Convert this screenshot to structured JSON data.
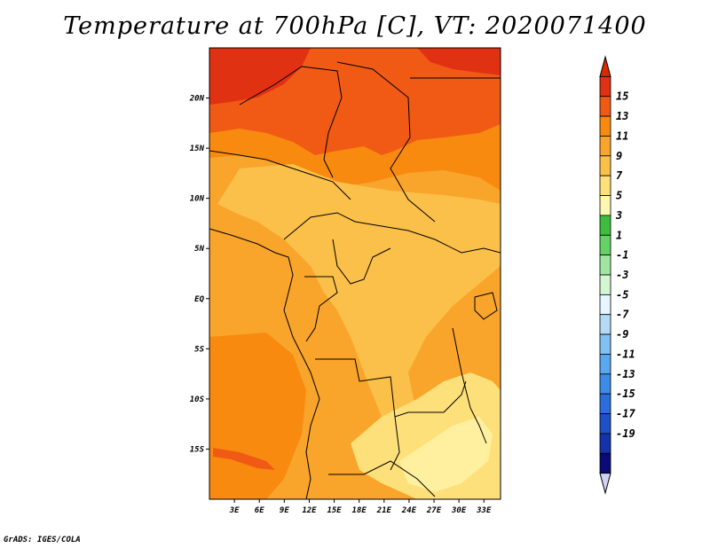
{
  "title": "Temperature at 700hPa [C], VT: 2020071400",
  "credit": "GrADS: IGES/COLA",
  "map": {
    "lon_range": [
      0,
      35
    ],
    "lat_range": [
      -20,
      25
    ],
    "lat_ticks": [
      {
        "value": 20,
        "label": "20N"
      },
      {
        "value": 15,
        "label": "15N"
      },
      {
        "value": 10,
        "label": "10N"
      },
      {
        "value": 5,
        "label": "5N"
      },
      {
        "value": 0,
        "label": "EQ"
      },
      {
        "value": -5,
        "label": "5S"
      },
      {
        "value": -10,
        "label": "10S"
      },
      {
        "value": -15,
        "label": "15S"
      }
    ],
    "lon_ticks": [
      {
        "value": 3,
        "label": "3E"
      },
      {
        "value": 6,
        "label": "6E"
      },
      {
        "value": 9,
        "label": "9E"
      },
      {
        "value": 12,
        "label": "12E"
      },
      {
        "value": 15,
        "label": "15E"
      },
      {
        "value": 18,
        "label": "18E"
      },
      {
        "value": 21,
        "label": "21E"
      },
      {
        "value": 24,
        "label": "24E"
      },
      {
        "value": 27,
        "label": "27E"
      },
      {
        "value": 30,
        "label": "30E"
      },
      {
        "value": 33,
        "label": "33E"
      }
    ]
  },
  "colorbar": {
    "labels": [
      "15",
      "13",
      "11",
      "9",
      "7",
      "5",
      "3",
      "1",
      "-1",
      "-3",
      "-5",
      "-7",
      "-9",
      "-11",
      "-13",
      "-15",
      "-17",
      "-19"
    ],
    "colors": [
      "#e03212",
      "#f05a14",
      "#f88a10",
      "#f9a42a",
      "#fbc04a",
      "#fde07a",
      "#fff8b4",
      "#3cbe3c",
      "#64d264",
      "#a0e6a0",
      "#d2f7d2",
      "#e6f5ff",
      "#b4daf8",
      "#82c0f4",
      "#5aa8f0",
      "#3c8ce6",
      "#2a6edc",
      "#1e50c8",
      "#1432aa",
      "#0a0a78"
    ],
    "top_cap_color": "#dc2800",
    "bottom_cap_color": "#d2d2f5"
  }
}
